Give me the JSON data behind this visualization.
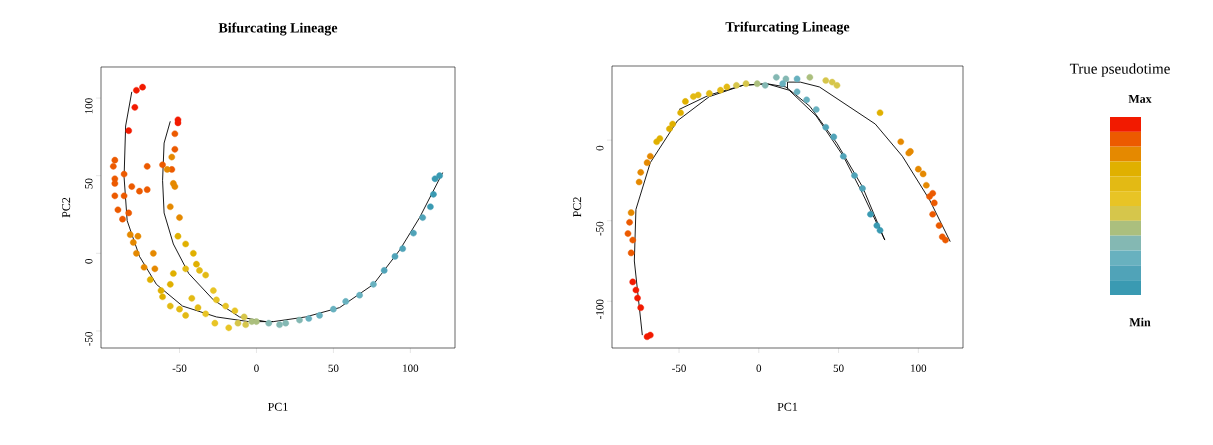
{
  "chart_data": [
    {
      "type": "scatter",
      "title": "Bifurcating Lineage",
      "xlabel": "PC1",
      "ylabel": "PC2",
      "xlim": [
        -101,
        129
      ],
      "ylim": [
        -61,
        120
      ],
      "xticks": [
        -50,
        0,
        50,
        100
      ],
      "yticks": [
        -50,
        0,
        50,
        100
      ],
      "marker": "circle",
      "series": [
        {
          "color": "#f21a00",
          "x": [
            -78,
            -74,
            -79,
            -83,
            -51,
            -51
          ],
          "values": [
            105,
            107,
            94,
            79,
            86,
            84
          ]
        },
        {
          "color": "#ec5a00",
          "x": [
            -92,
            -93,
            -92,
            -53,
            -53,
            -92,
            -92,
            -86,
            -81,
            -71,
            -76,
            -71,
            -86,
            -90,
            -87,
            -83,
            -61,
            -55
          ],
          "values": [
            60,
            56,
            48,
            77,
            67,
            45,
            37,
            51,
            43,
            56,
            40,
            41,
            37,
            28,
            22,
            26,
            57,
            54
          ]
        },
        {
          "color": "#e58900",
          "x": [
            -55,
            -58,
            -54,
            -53,
            -56,
            -50,
            -82,
            -80,
            -77,
            -67,
            -73,
            -66,
            -78
          ],
          "values": [
            62,
            54,
            45,
            43,
            30,
            23,
            12,
            7,
            11,
            0,
            -9,
            -10,
            0
          ]
        },
        {
          "color": "#e0b000",
          "x": [
            -51,
            -46,
            -41,
            -39,
            -69,
            -62,
            -56,
            -54,
            -61
          ],
          "values": [
            11,
            6,
            0,
            -7,
            -17,
            -24,
            -20,
            -13,
            -28
          ]
        },
        {
          "color": "#e3ba14",
          "x": [
            -37,
            -33,
            -46,
            -56,
            -50,
            -46,
            -42,
            -38
          ],
          "values": [
            -11,
            -14,
            -10,
            -34,
            -36,
            -40,
            -29,
            -35
          ]
        },
        {
          "color": "#e8c425",
          "x": [
            -28,
            -26,
            -20,
            -14,
            -33,
            -27,
            -18
          ],
          "values": [
            -24,
            -30,
            -34,
            -37,
            -39,
            -45,
            -48
          ]
        },
        {
          "color": "#d6c64b",
          "x": [
            -12,
            -7,
            -8
          ],
          "values": [
            -45,
            -46,
            -41
          ]
        },
        {
          "color": "#abbf7e",
          "x": [
            -3,
            0
          ],
          "values": [
            -44,
            -44
          ]
        },
        {
          "color": "#84b8b3",
          "x": [
            8,
            15,
            19,
            28
          ],
          "values": [
            -45,
            -46,
            -45,
            -43
          ]
        },
        {
          "color": "#68b1bf",
          "x": [
            34,
            41,
            50,
            58,
            67,
            76
          ],
          "values": [
            -42,
            -40,
            -36,
            -31,
            -27,
            -20
          ]
        },
        {
          "color": "#50a3b8",
          "x": [
            83,
            90,
            95,
            102,
            108
          ],
          "values": [
            -11,
            -2,
            3,
            13,
            23
          ]
        },
        {
          "color": "#3a9ab2",
          "x": [
            113,
            115,
            119,
            116
          ],
          "values": [
            30,
            38,
            50,
            48
          ]
        },
        {
          "type": "line",
          "marker": "none",
          "color": "#000000",
          "x": [
            -81,
            -85,
            -86,
            -84,
            -76,
            -65,
            -48,
            -26,
            -5,
            11,
            32,
            54,
            76,
            93,
            106,
            121
          ],
          "values": [
            104,
            82,
            49,
            21,
            -2,
            -20,
            -34,
            -41,
            -44,
            -44,
            -41,
            -35,
            -20,
            2,
            23,
            52
          ]
        },
        {
          "type": "line",
          "marker": "none",
          "color": "#000000",
          "x": [
            -56,
            -60,
            -61,
            -60,
            -54,
            -44,
            -28,
            -11,
            6,
            11
          ],
          "values": [
            85,
            71,
            47,
            26,
            6,
            -13,
            -30,
            -41,
            -44,
            -44
          ]
        }
      ]
    },
    {
      "type": "scatter",
      "title": "Trifurcating Lineage",
      "xlabel": "PC1",
      "ylabel": "PC2",
      "xlim": [
        -92,
        128
      ],
      "ylim": [
        -129,
        46
      ],
      "xticks": [
        -50,
        0,
        50,
        100
      ],
      "yticks": [
        -100,
        -50,
        0
      ],
      "marker": "circle",
      "series": [
        {
          "color": "#f21a00",
          "x": [
            -68,
            -70,
            -77,
            -76,
            -74,
            -79
          ],
          "values": [
            -121,
            -122,
            -93,
            -98,
            -104,
            -88
          ]
        },
        {
          "color": "#ec5a00",
          "x": [
            -80,
            -79,
            -82,
            -81,
            109,
            110,
            109,
            113,
            115,
            117,
            107
          ],
          "values": [
            -70,
            -62,
            -58,
            -51,
            -33,
            -39,
            -46,
            -53,
            -60,
            -62,
            -35
          ]
        },
        {
          "color": "#e58900",
          "x": [
            -80,
            -75,
            -74,
            -70,
            -68,
            89,
            94,
            95,
            100,
            103,
            105
          ],
          "values": [
            -45,
            -26,
            -20,
            -14,
            -10,
            -1,
            -8,
            -7,
            -18,
            -21,
            -28
          ]
        },
        {
          "color": "#e0b000",
          "x": [
            -64,
            -62,
            -56,
            -54,
            -49,
            -46,
            76
          ],
          "values": [
            -1,
            1,
            7,
            10,
            17,
            24,
            17
          ]
        },
        {
          "color": "#e3ba14",
          "x": [
            -41,
            -38,
            -31,
            -24,
            -20
          ],
          "values": [
            27,
            28,
            29,
            31,
            33
          ]
        },
        {
          "color": "#d6c64b",
          "x": [
            42,
            49,
            46,
            -14,
            -8
          ],
          "values": [
            37,
            34,
            36,
            34,
            35
          ]
        },
        {
          "color": "#abbf7e",
          "x": [
            -1,
            32
          ],
          "values": [
            35,
            39
          ]
        },
        {
          "color": "#84b8b3",
          "x": [
            4,
            11,
            17
          ],
          "values": [
            34,
            39,
            38
          ]
        },
        {
          "color": "#68b1bf",
          "x": [
            15,
            24,
            24,
            30,
            36
          ],
          "values": [
            35,
            38,
            30,
            25,
            19
          ]
        },
        {
          "color": "#50a3b8",
          "x": [
            42,
            47,
            53,
            60,
            65
          ],
          "values": [
            8,
            2,
            -10,
            -22,
            -30
          ]
        },
        {
          "color": "#3a9ab2",
          "x": [
            70,
            74,
            76
          ],
          "values": [
            -46,
            -53,
            -56
          ]
        },
        {
          "type": "line",
          "marker": "none",
          "color": "#000000",
          "x": [
            -73,
            -78,
            -77,
            -68,
            -51,
            -31,
            -10,
            5,
            19,
            36,
            53,
            65,
            79
          ],
          "values": [
            -121,
            -75,
            -43,
            -14,
            12,
            27,
            34,
            35,
            31,
            15,
            -10,
            -33,
            -62
          ]
        },
        {
          "type": "line",
          "marker": "none",
          "color": "#000000",
          "x": [
            -50,
            -31,
            -10,
            5,
            17,
            32,
            49,
            65,
            79
          ],
          "values": [
            19,
            28,
            34,
            35,
            33,
            21,
            -2,
            -29,
            -62
          ]
        },
        {
          "type": "line",
          "marker": "none",
          "color": "#000000",
          "x": [
            18,
            18,
            26,
            38,
            73,
            90,
            107,
            120
          ],
          "values": [
            32,
            36,
            36,
            33,
            10,
            -10,
            -37,
            -63
          ]
        }
      ]
    },
    {
      "type": "other",
      "title": "True pseudotime",
      "annotations": [
        "Max",
        "Min"
      ],
      "colors": [
        "#f21a00",
        "#ec5a00",
        "#e58900",
        "#e0b000",
        "#e3ba14",
        "#e8c425",
        "#d6c64b",
        "#abbf7e",
        "#84b8b3",
        "#68b1bf",
        "#50a3b8",
        "#3a9ab2"
      ]
    }
  ]
}
